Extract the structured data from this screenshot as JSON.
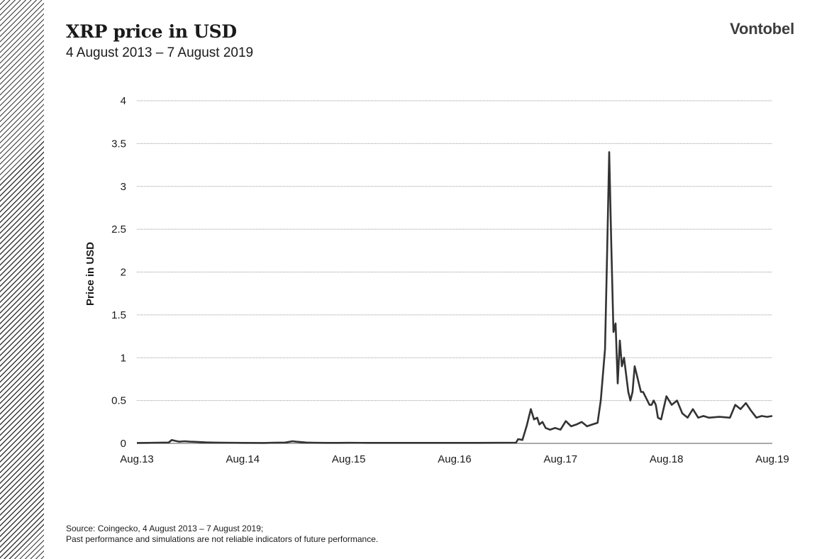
{
  "header": {
    "title": "XRP price in USD",
    "subtitle": "4 August 2013 – 7 August 2019",
    "logo": "Vontobel"
  },
  "footer": {
    "source": "Source: Coingecko, 4 August 2013 – 7 August 2019;",
    "disclaimer": "Past performance and simulations are not reliable indicators of future performance."
  },
  "chart_data": {
    "type": "line",
    "title": "XRP price in USD",
    "xlabel": "",
    "ylabel": "Price in USD",
    "ylim": [
      0,
      4
    ],
    "xlim": [
      0,
      6
    ],
    "yticks": [
      0,
      0.5,
      1,
      1.5,
      2,
      2.5,
      3,
      3.5,
      4
    ],
    "ytick_labels": [
      "0",
      "0.5",
      "1",
      "1.5",
      "2",
      "2.5",
      "3",
      "3.5",
      "4"
    ],
    "xticks": [
      0,
      1,
      2,
      3,
      4,
      5,
      6
    ],
    "xtick_labels": [
      "Aug.13",
      "Aug.14",
      "Aug.15",
      "Aug.16",
      "Aug.17",
      "Aug.18",
      "Aug.19"
    ],
    "grid": true,
    "line_color": "#333333",
    "series": [
      {
        "name": "XRP price in USD",
        "x": [
          0,
          0.1,
          0.2,
          0.3,
          0.33,
          0.36,
          0.4,
          0.45,
          0.5,
          0.55,
          0.6,
          0.65,
          0.7,
          0.8,
          1.0,
          1.2,
          1.4,
          1.47,
          1.5,
          1.55,
          1.6,
          1.65,
          1.7,
          1.8,
          1.9,
          2.0,
          2.2,
          2.5,
          2.8,
          3.0,
          3.2,
          3.4,
          3.58,
          3.6,
          3.64,
          3.68,
          3.72,
          3.75,
          3.78,
          3.8,
          3.83,
          3.86,
          3.9,
          3.95,
          4.0,
          4.05,
          4.1,
          4.15,
          4.2,
          4.25,
          4.3,
          4.35,
          4.38,
          4.4,
          4.42,
          4.44,
          4.46,
          4.48,
          4.5,
          4.52,
          4.54,
          4.56,
          4.58,
          4.6,
          4.62,
          4.64,
          4.66,
          4.68,
          4.7,
          4.72,
          4.74,
          4.76,
          4.78,
          4.8,
          4.82,
          4.84,
          4.86,
          4.88,
          4.9,
          4.92,
          4.95,
          5.0,
          5.05,
          5.1,
          5.15,
          5.2,
          5.25,
          5.3,
          5.35,
          5.4,
          5.5,
          5.6,
          5.65,
          5.7,
          5.75,
          5.8,
          5.85,
          5.9,
          5.95,
          6.0
        ],
        "y": [
          0.005,
          0.006,
          0.008,
          0.01,
          0.04,
          0.03,
          0.02,
          0.025,
          0.02,
          0.018,
          0.015,
          0.012,
          0.01,
          0.008,
          0.006,
          0.005,
          0.01,
          0.025,
          0.02,
          0.015,
          0.01,
          0.008,
          0.007,
          0.006,
          0.006,
          0.007,
          0.006,
          0.006,
          0.006,
          0.006,
          0.006,
          0.007,
          0.008,
          0.05,
          0.04,
          0.2,
          0.4,
          0.28,
          0.3,
          0.22,
          0.25,
          0.18,
          0.16,
          0.18,
          0.16,
          0.26,
          0.2,
          0.22,
          0.25,
          0.2,
          0.22,
          0.24,
          0.5,
          0.8,
          1.1,
          2.2,
          3.4,
          2.3,
          1.3,
          1.4,
          0.7,
          1.2,
          0.9,
          1.0,
          0.8,
          0.6,
          0.5,
          0.6,
          0.9,
          0.8,
          0.7,
          0.6,
          0.6,
          0.55,
          0.5,
          0.45,
          0.45,
          0.5,
          0.45,
          0.3,
          0.28,
          0.55,
          0.45,
          0.5,
          0.35,
          0.3,
          0.4,
          0.3,
          0.32,
          0.3,
          0.31,
          0.3,
          0.45,
          0.4,
          0.47,
          0.38,
          0.3,
          0.32,
          0.31,
          0.32
        ]
      }
    ]
  }
}
